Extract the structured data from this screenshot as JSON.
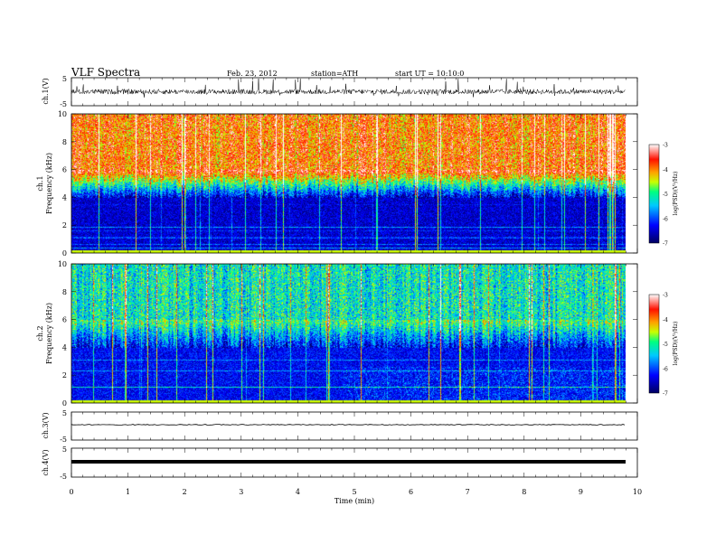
{
  "header": {
    "title": "VLF  Spectra",
    "date": "Feb. 23, 2012",
    "station": "station=ATH",
    "start_ut": "start  UT  =   10:10:0"
  },
  "chart_data": [
    {
      "type": "line",
      "panel": "ch1-waveform",
      "ylabel": "ch.1(V)",
      "ylim": [
        -5,
        5
      ],
      "yticks": [
        "5",
        "-5"
      ],
      "signal": "dense broadband noise ~±1 V with spikes up to ±5 V",
      "xlim": [
        0,
        10
      ]
    },
    {
      "type": "heatmap",
      "panel": "ch1-spectrogram",
      "ylabel_channel": "ch.1",
      "ylabel": "Frequency  (kHz)",
      "ylim": [
        0,
        10
      ],
      "yticks": [
        "0",
        "2",
        "4",
        "6",
        "8",
        "10"
      ],
      "xlim": [
        0,
        10
      ],
      "colorbar": {
        "label": "log(PSD)(V²/Hz)",
        "range": [
          -7,
          -3
        ],
        "ticks": [
          "-3",
          "-4",
          "-5",
          "-6",
          "-7"
        ]
      },
      "description_levels": {
        "above_6kHz": -3.5,
        "4_to_6kHz": -5,
        "below_4kHz": -6.5
      }
    },
    {
      "type": "heatmap",
      "panel": "ch2-spectrogram",
      "ylabel_channel": "ch.2",
      "ylabel": "Frequency  (kHz)",
      "ylim": [
        0,
        10
      ],
      "yticks": [
        "0",
        "2",
        "4",
        "6",
        "8",
        "10"
      ],
      "xlim": [
        0,
        10
      ],
      "colorbar": {
        "label": "log(PSD)(V²/Hz)",
        "range": [
          -7,
          -3
        ],
        "ticks": [
          "-3",
          "-4",
          "-5",
          "-6",
          "-7"
        ]
      },
      "description_levels": {
        "above_6kHz": -4.8,
        "4_to_6kHz": -5.6,
        "below_4kHz": -6.3
      }
    },
    {
      "type": "line",
      "panel": "ch3-waveform",
      "ylabel": "ch.3(V)",
      "ylim": [
        -5,
        5
      ],
      "yticks": [
        "5",
        "-5"
      ],
      "level": 0,
      "xlim": [
        0,
        10
      ]
    },
    {
      "type": "line",
      "panel": "ch4-waveform",
      "ylabel": "ch.4(V)",
      "ylim": [
        -5,
        5
      ],
      "yticks": [
        "5",
        "-5"
      ],
      "level": 0,
      "xlim": [
        0,
        10
      ]
    }
  ],
  "xaxis": {
    "label": "Time  (min)",
    "ticks": [
      "0",
      "1",
      "2",
      "3",
      "4",
      "5",
      "6",
      "7",
      "8",
      "9",
      "10"
    ]
  },
  "colors": {
    "colormap": [
      "#0a0a6e",
      "#0000ff",
      "#00a0ff",
      "#00ff80",
      "#c0ff00",
      "#ffa000",
      "#ff2000",
      "#ffffff"
    ],
    "trace": "#000000",
    "frame": "#000000"
  }
}
